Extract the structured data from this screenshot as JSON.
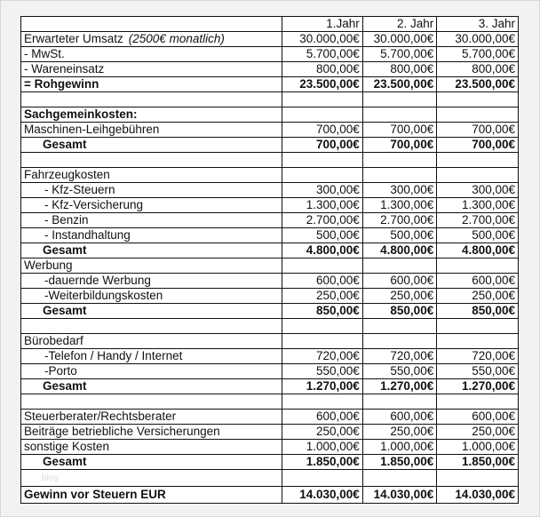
{
  "header": [
    "",
    "1.Jahr",
    "2. Jahr",
    "3. Jahr"
  ],
  "rows": [
    {
      "label": "Erwarteter Umsatz",
      "note": "(2500€ monatlich)",
      "values": [
        "30.000,00€",
        "30.000,00€",
        "30.000,00€"
      ],
      "style": ""
    },
    {
      "label": "- MwSt.",
      "values": [
        "5.700,00€",
        "5.700,00€",
        "5.700,00€"
      ],
      "style": ""
    },
    {
      "label": "- Wareneinsatz",
      "values": [
        "800,00€",
        "800,00€",
        "800,00€"
      ],
      "style": ""
    },
    {
      "label": "= Rohgewinn",
      "values": [
        "23.500,00€",
        "23.500,00€",
        "23.500,00€"
      ],
      "style": "bold"
    },
    {
      "label": "",
      "values": [
        "",
        "",
        ""
      ],
      "style": ""
    },
    {
      "label": "Sachgemeinkosten:",
      "values": [
        "",
        "",
        ""
      ],
      "style": "bold"
    },
    {
      "label": "Maschinen-Leihgebühren",
      "values": [
        "700,00€",
        "700,00€",
        "700,00€"
      ],
      "style": ""
    },
    {
      "label": "Gesamt",
      "values": [
        "700,00€",
        "700,00€",
        "700,00€"
      ],
      "style": "bold indent"
    },
    {
      "label": "",
      "values": [
        "",
        "",
        ""
      ],
      "style": ""
    },
    {
      "label": "Fahrzeugkosten",
      "values": [
        "",
        "",
        ""
      ],
      "style": ""
    },
    {
      "label": "- Kfz-Steuern",
      "values": [
        "300,00€",
        "300,00€",
        "300,00€"
      ],
      "style": "sub"
    },
    {
      "label": "- Kfz-Versicherung",
      "values": [
        "1.300,00€",
        "1.300,00€",
        "1.300,00€"
      ],
      "style": "sub"
    },
    {
      "label": "- Benzin",
      "values": [
        "2.700,00€",
        "2.700,00€",
        "2.700,00€"
      ],
      "style": "sub"
    },
    {
      "label": "- Instandhaltung",
      "values": [
        "500,00€",
        "500,00€",
        "500,00€"
      ],
      "style": "sub"
    },
    {
      "label": "Gesamt",
      "values": [
        "4.800,00€",
        "4.800,00€",
        "4.800,00€"
      ],
      "style": "bold indent"
    },
    {
      "label": "Werbung",
      "values": [
        "",
        "",
        ""
      ],
      "style": ""
    },
    {
      "label": "-dauernde Werbung",
      "values": [
        "600,00€",
        "600,00€",
        "600,00€"
      ],
      "style": "sub"
    },
    {
      "label": "-Weiterbildungskosten",
      "values": [
        "250,00€",
        "250,00€",
        "250,00€"
      ],
      "style": "sub"
    },
    {
      "label": "Gesamt",
      "values": [
        "850,00€",
        "850,00€",
        "850,00€"
      ],
      "style": "bold indent"
    },
    {
      "label": "",
      "values": [
        "",
        "",
        ""
      ],
      "style": ""
    },
    {
      "label": "Bürobedarf",
      "values": [
        "",
        "",
        ""
      ],
      "style": ""
    },
    {
      "label": "-Telefon / Handy  / Internet",
      "values": [
        "720,00€",
        "720,00€",
        "720,00€"
      ],
      "style": "sub"
    },
    {
      "label": "-Porto",
      "values": [
        "550,00€",
        "550,00€",
        "550,00€"
      ],
      "style": "sub"
    },
    {
      "label": "Gesamt",
      "values": [
        "1.270,00€",
        "1.270,00€",
        "1.270,00€"
      ],
      "style": "bold indent"
    },
    {
      "label": "",
      "values": [
        "",
        "",
        ""
      ],
      "style": ""
    },
    {
      "label": "Steuerberater/Rechtsberater",
      "values": [
        "600,00€",
        "600,00€",
        "600,00€"
      ],
      "style": ""
    },
    {
      "label": "Beiträge betriebliche  Versicherungen",
      "values": [
        "250,00€",
        "250,00€",
        "250,00€"
      ],
      "style": ""
    },
    {
      "label": "sonstige Kosten",
      "values": [
        "1.000,00€",
        "1.000,00€",
        "1.000,00€"
      ],
      "style": ""
    },
    {
      "label": "Gesamt",
      "values": [
        "1.850,00€",
        "1.850,00€",
        "1.850,00€"
      ],
      "style": "bold indent"
    },
    {
      "label": "",
      "watermark": "blog",
      "values": [
        "",
        "",
        ""
      ],
      "style": ""
    },
    {
      "label": "Gewinn vor Steuern EUR",
      "values": [
        "14.030,00€",
        "14.030,00€",
        "14.030,00€"
      ],
      "style": "bold final"
    }
  ]
}
